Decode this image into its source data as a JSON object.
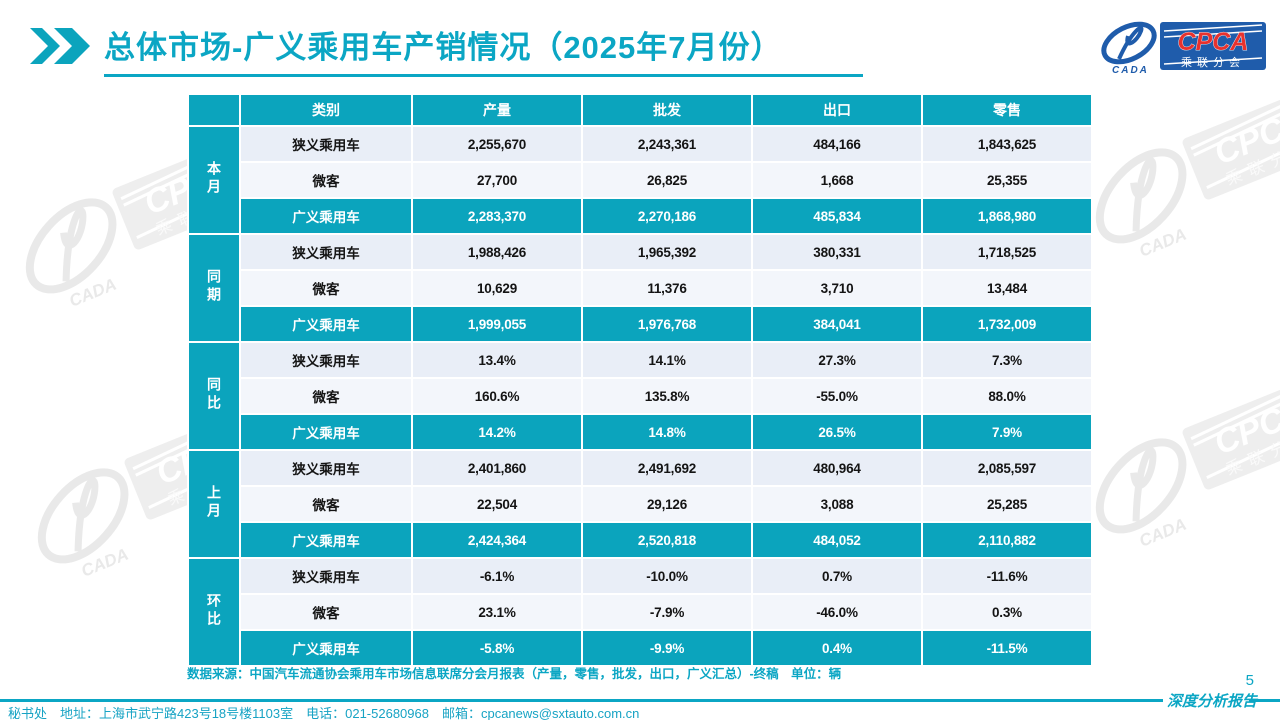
{
  "header": {
    "title": "总体市场-广义乘用车产销情况（2025年7月份）",
    "logo": {
      "abbr": "CPCA",
      "name_cn": "乘联分会",
      "cada": "CADA"
    }
  },
  "table": {
    "columns": [
      "类别",
      "产量",
      "批发",
      "出口",
      "零售"
    ],
    "groups": [
      {
        "label": "本月",
        "rows": [
          {
            "category": "狭义乘用车",
            "values": [
              "2,255,670",
              "2,243,361",
              "484,166",
              "1,843,625"
            ],
            "highlight": false
          },
          {
            "category": "微客",
            "values": [
              "27,700",
              "26,825",
              "1,668",
              "25,355"
            ],
            "highlight": false
          },
          {
            "category": "广义乘用车",
            "values": [
              "2,283,370",
              "2,270,186",
              "485,834",
              "1,868,980"
            ],
            "highlight": true
          }
        ]
      },
      {
        "label": "同期",
        "rows": [
          {
            "category": "狭义乘用车",
            "values": [
              "1,988,426",
              "1,965,392",
              "380,331",
              "1,718,525"
            ],
            "highlight": false
          },
          {
            "category": "微客",
            "values": [
              "10,629",
              "11,376",
              "3,710",
              "13,484"
            ],
            "highlight": false
          },
          {
            "category": "广义乘用车",
            "values": [
              "1,999,055",
              "1,976,768",
              "384,041",
              "1,732,009"
            ],
            "highlight": true
          }
        ]
      },
      {
        "label": "同比",
        "rows": [
          {
            "category": "狭义乘用车",
            "values": [
              "13.4%",
              "14.1%",
              "27.3%",
              "7.3%"
            ],
            "highlight": false
          },
          {
            "category": "微客",
            "values": [
              "160.6%",
              "135.8%",
              "-55.0%",
              "88.0%"
            ],
            "highlight": false
          },
          {
            "category": "广义乘用车",
            "values": [
              "14.2%",
              "14.8%",
              "26.5%",
              "7.9%"
            ],
            "highlight": true
          }
        ]
      },
      {
        "label": "上月",
        "rows": [
          {
            "category": "狭义乘用车",
            "values": [
              "2,401,860",
              "2,491,692",
              "480,964",
              "2,085,597"
            ],
            "highlight": false
          },
          {
            "category": "微客",
            "values": [
              "22,504",
              "29,126",
              "3,088",
              "25,285"
            ],
            "highlight": false
          },
          {
            "category": "广义乘用车",
            "values": [
              "2,424,364",
              "2,520,818",
              "484,052",
              "2,110,882"
            ],
            "highlight": true
          }
        ]
      },
      {
        "label": "环比",
        "rows": [
          {
            "category": "狭义乘用车",
            "values": [
              "-6.1%",
              "-10.0%",
              "0.7%",
              "-11.6%"
            ],
            "highlight": false
          },
          {
            "category": "微客",
            "values": [
              "23.1%",
              "-7.9%",
              "-46.0%",
              "0.3%"
            ],
            "highlight": false
          },
          {
            "category": "广义乘用车",
            "values": [
              "-5.8%",
              "-9.9%",
              "0.4%",
              "-11.5%"
            ],
            "highlight": true
          }
        ]
      }
    ]
  },
  "source_note": "数据来源：中国汽车流通协会乘用车市场信息联席分会月报表（产量，零售，批发，出口，广义汇总）-终稿　单位：辆",
  "page_number": "5",
  "footer": {
    "report_label": "深度分析报告",
    "secretariat": "秘书处　地址：上海市武宁路423号18号楼1103室　电话：021-52680968　邮箱：cpcanews@sxtauto.com.cn"
  },
  "colors": {
    "accent": "#0BA4BD",
    "title": "#0BA6C4",
    "row_light": "#E9EEF7",
    "row_lighter": "#F3F6FB",
    "logo_blue": "#1F5CAB",
    "logo_red": "#E8322E"
  }
}
